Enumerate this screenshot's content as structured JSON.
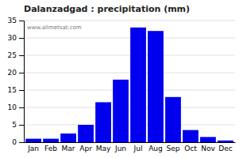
{
  "chart_data": {
    "type": "bar",
    "title": "Dalanzadgad : precipitation (mm)",
    "categories": [
      "Jan",
      "Feb",
      "Mar",
      "Apr",
      "May",
      "Jun",
      "Jul",
      "Aug",
      "Sep",
      "Oct",
      "Nov",
      "Dec"
    ],
    "values": [
      1.0,
      1.0,
      2.5,
      5.0,
      11.5,
      18.0,
      33.0,
      32.0,
      13.0,
      3.5,
      1.5,
      0.5
    ],
    "color": "#0000ee",
    "ylim": [
      0,
      35
    ],
    "yticks": [
      0,
      5,
      10,
      15,
      20,
      25,
      30,
      35
    ],
    "grid": true,
    "annotations": [
      "www.allmetsat.com"
    ]
  }
}
